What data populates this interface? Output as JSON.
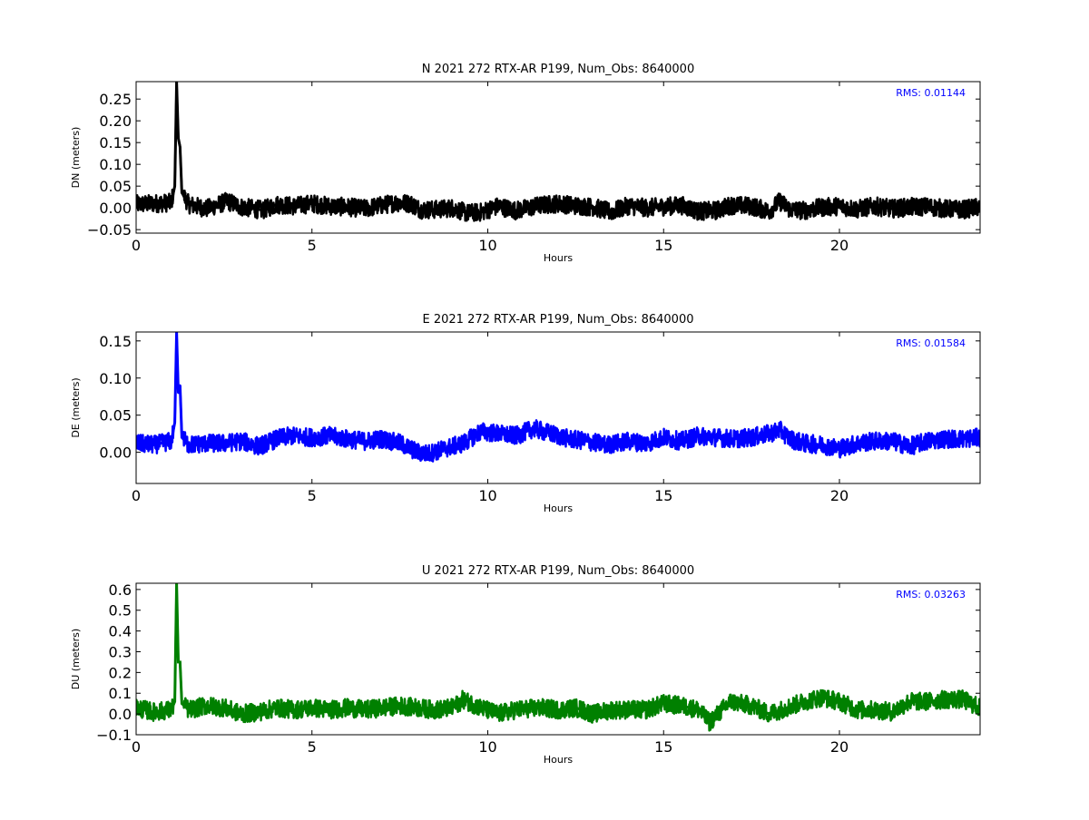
{
  "chart_data": [
    {
      "type": "line",
      "title": "N 2021 272 RTX-AR  P199, Num_Obs: 8640000",
      "xlabel": "Hours",
      "ylabel": "DN (meters)",
      "xlim": [
        0,
        24
      ],
      "ylim": [
        -0.058,
        0.29
      ],
      "xticks": [
        0,
        5,
        10,
        15,
        20
      ],
      "yticks": [
        -0.05,
        0.0,
        0.05,
        0.1,
        0.15,
        0.2,
        0.25
      ],
      "ytick_labels": [
        "−0.05",
        "0.00",
        "0.05",
        "0.10",
        "0.15",
        "0.20",
        "0.25"
      ],
      "grid": false,
      "color": "#000000",
      "annotation": {
        "text": "RMS:  0.01144",
        "color": "#0000ff",
        "position": "top-right"
      },
      "series": [
        {
          "x": [
            0,
            0.5,
            1.0,
            1.1,
            1.15,
            1.2,
            1.25,
            1.3,
            1.5,
            2.0,
            2.6,
            3.0,
            3.6,
            4.0,
            4.5,
            5.0,
            5.5,
            6.0,
            6.5,
            7.0,
            7.4,
            7.8,
            8.1,
            8.5,
            9.0,
            9.4,
            9.8,
            10.3,
            10.8,
            11.5,
            12.0,
            12.5,
            13.0,
            13.5,
            14.0,
            14.5,
            15.0,
            15.5,
            16.0,
            16.5,
            16.9,
            17.5,
            18.0,
            18.3,
            18.6,
            19.0,
            19.5,
            20.0,
            20.5,
            21.0,
            21.5,
            22.0,
            22.5,
            23.0,
            23.5,
            24.0
          ],
          "y": [
            0.008,
            0.01,
            0.012,
            0.05,
            0.29,
            0.16,
            0.14,
            0.035,
            0.008,
            -0.002,
            0.015,
            0.002,
            -0.005,
            0.008,
            0.004,
            0.01,
            0.004,
            0.002,
            -0.002,
            0.006,
            0.012,
            0.01,
            -0.004,
            -0.004,
            0.0,
            -0.012,
            -0.01,
            0.004,
            -0.006,
            0.006,
            0.01,
            0.005,
            0.002,
            -0.01,
            0.005,
            0.0,
            0.003,
            0.006,
            -0.008,
            -0.006,
            0.006,
            0.004,
            -0.008,
            0.015,
            -0.004,
            -0.006,
            0.001,
            0.004,
            -0.003,
            0.004,
            -0.002,
            0.002,
            0.003,
            -0.002,
            -0.004,
            0.002
          ]
        }
      ]
    },
    {
      "type": "line",
      "title": "E 2021 272 RTX-AR  P199, Num_Obs: 8640000",
      "xlabel": "Hours",
      "ylabel": "DE (meters)",
      "xlim": [
        0,
        24
      ],
      "ylim": [
        -0.042,
        0.162
      ],
      "xticks": [
        0,
        5,
        10,
        15,
        20
      ],
      "yticks": [
        0.0,
        0.05,
        0.1,
        0.15
      ],
      "ytick_labels": [
        "0.00",
        "0.05",
        "0.10",
        "0.15"
      ],
      "grid": false,
      "color": "#0000ff",
      "annotation": {
        "text": "RMS:  0.01584",
        "color": "#0000ff",
        "position": "top-right"
      },
      "series": [
        {
          "x": [
            0,
            0.5,
            1.0,
            1.1,
            1.15,
            1.2,
            1.25,
            1.3,
            1.5,
            2.0,
            2.5,
            3.0,
            3.5,
            4.0,
            4.4,
            5.0,
            5.5,
            6.0,
            6.5,
            7.0,
            7.5,
            8.0,
            8.3,
            8.8,
            9.3,
            9.8,
            10.3,
            10.8,
            11.3,
            11.8,
            12.3,
            12.8,
            13.4,
            14.0,
            14.5,
            15.0,
            15.5,
            16.0,
            16.5,
            17.0,
            17.5,
            18.0,
            18.3,
            18.6,
            19.0,
            19.5,
            20.0,
            20.5,
            21.0,
            21.5,
            22.0,
            22.5,
            23.0,
            23.5,
            24.0
          ],
          "y": [
            0.012,
            0.01,
            0.015,
            0.04,
            0.162,
            0.08,
            0.09,
            0.02,
            0.01,
            0.012,
            0.012,
            0.015,
            0.008,
            0.018,
            0.022,
            0.02,
            0.022,
            0.018,
            0.015,
            0.018,
            0.012,
            0.0,
            -0.002,
            0.005,
            0.012,
            0.028,
            0.025,
            0.022,
            0.032,
            0.025,
            0.018,
            0.015,
            0.01,
            0.015,
            0.012,
            0.02,
            0.015,
            0.022,
            0.02,
            0.018,
            0.02,
            0.025,
            0.03,
            0.018,
            0.012,
            0.01,
            0.005,
            0.012,
            0.015,
            0.015,
            0.008,
            0.015,
            0.018,
            0.018,
            0.02
          ]
        }
      ]
    },
    {
      "type": "line",
      "title": "U 2021 272 RTX-AR  P199, Num_Obs: 8640000",
      "xlabel": "Hours",
      "ylabel": "DU (meters)",
      "xlim": [
        0,
        24
      ],
      "ylim": [
        -0.1,
        0.63
      ],
      "xticks": [
        0,
        5,
        10,
        15,
        20
      ],
      "yticks": [
        -0.1,
        0.0,
        0.1,
        0.2,
        0.3,
        0.4,
        0.5,
        0.6
      ],
      "ytick_labels": [
        "−0.1",
        "0.0",
        "0.1",
        "0.2",
        "0.3",
        "0.4",
        "0.5",
        "0.6"
      ],
      "grid": false,
      "color": "#008000",
      "annotation": {
        "text": "RMS:  0.03263",
        "color": "#0000ff",
        "position": "top-right"
      },
      "series": [
        {
          "x": [
            0,
            0.5,
            1.0,
            1.1,
            1.15,
            1.2,
            1.25,
            1.3,
            1.5,
            2.0,
            2.5,
            3.0,
            3.5,
            4.0,
            4.5,
            5.0,
            5.5,
            6.0,
            6.5,
            7.0,
            7.5,
            8.0,
            8.5,
            9.0,
            9.3,
            9.8,
            10.3,
            10.8,
            11.5,
            12.0,
            12.5,
            13.0,
            13.5,
            14.0,
            14.5,
            15.0,
            15.5,
            16.0,
            16.3,
            16.9,
            17.5,
            18.0,
            18.5,
            19.0,
            19.5,
            20.0,
            20.5,
            21.0,
            21.5,
            22.0,
            22.5,
            23.0,
            23.5,
            24.0
          ],
          "y": [
            0.03,
            0.01,
            0.02,
            0.06,
            0.63,
            0.25,
            0.25,
            0.05,
            0.02,
            0.04,
            0.03,
            0.0,
            0.01,
            0.03,
            0.02,
            0.03,
            0.02,
            0.03,
            0.02,
            0.03,
            0.04,
            0.03,
            0.02,
            0.03,
            0.07,
            0.03,
            0.0,
            0.02,
            0.03,
            0.02,
            0.03,
            0.0,
            0.02,
            0.02,
            0.02,
            0.05,
            0.04,
            0.02,
            -0.04,
            0.06,
            0.04,
            0.0,
            0.03,
            0.06,
            0.08,
            0.06,
            0.02,
            0.02,
            0.01,
            0.06,
            0.06,
            0.07,
            0.07,
            0.03
          ]
        }
      ]
    }
  ]
}
